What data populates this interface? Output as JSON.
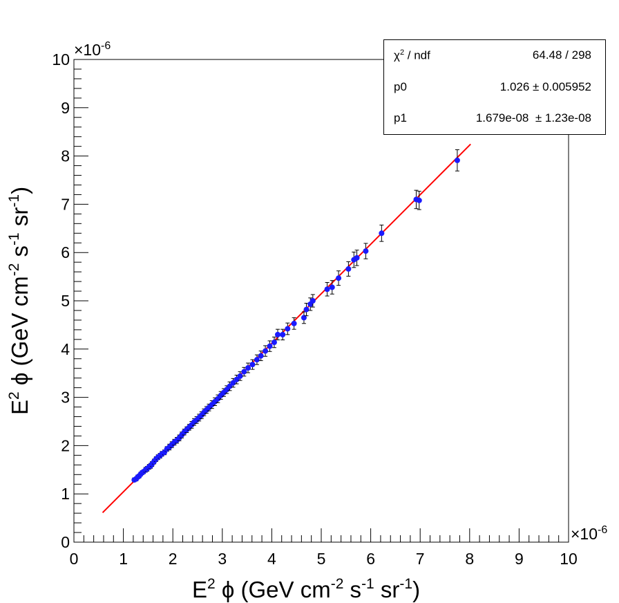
{
  "colors": {
    "marker": "#1a1aff",
    "fit_line": "#ff0000",
    "error_bar": "#000000",
    "frame": "#000000"
  },
  "stats_box": {
    "rows": [
      {
        "key_base": "χ",
        "key_sup": "2",
        "key_rest": " / ndf",
        "value": "64.48 / 298"
      },
      {
        "key": "p0",
        "value": "1.026 ± 0.005952"
      },
      {
        "key": "p1",
        "value": "1.679e-08  ± 1.23e-08"
      }
    ]
  },
  "chart_data": {
    "type": "scatter",
    "title": "",
    "x_axis": {
      "label_parts": [
        "E",
        "2",
        " ϕ (GeV cm",
        "-2",
        " s",
        "-1",
        " sr",
        "-1",
        ")"
      ],
      "multiplier": "×10",
      "multiplier_exp": "-6",
      "range": [
        0,
        10
      ],
      "ticks": [
        "0",
        "1",
        "2",
        "3",
        "4",
        "5",
        "6",
        "7",
        "8",
        "9",
        "10"
      ]
    },
    "y_axis": {
      "label_parts": [
        "E",
        "2",
        " ϕ (GeV cm",
        "-2",
        " s",
        "-1",
        " sr",
        "-1",
        ")"
      ],
      "multiplier": "×10",
      "multiplier_exp": "-6",
      "range": [
        0,
        10
      ],
      "ticks": [
        "0",
        "1",
        "2",
        "3",
        "4",
        "5",
        "6",
        "7",
        "8",
        "9",
        "10"
      ]
    },
    "fit": {
      "function": "p0*x + p1",
      "p0": 1.026,
      "p1": 1.679e-08,
      "x_range": [
        0.58,
        8.02
      ]
    },
    "unit_scale": "1e-6",
    "points": [
      {
        "x": 1.22,
        "y": 1.29,
        "err": 0.04
      },
      {
        "x": 1.26,
        "y": 1.31,
        "err": 0.04
      },
      {
        "x": 1.29,
        "y": 1.35,
        "err": 0.04
      },
      {
        "x": 1.32,
        "y": 1.37,
        "err": 0.04
      },
      {
        "x": 1.35,
        "y": 1.41,
        "err": 0.04
      },
      {
        "x": 1.38,
        "y": 1.44,
        "err": 0.04
      },
      {
        "x": 1.41,
        "y": 1.46,
        "err": 0.04
      },
      {
        "x": 1.45,
        "y": 1.5,
        "err": 0.05
      },
      {
        "x": 1.48,
        "y": 1.52,
        "err": 0.05
      },
      {
        "x": 1.52,
        "y": 1.56,
        "err": 0.05
      },
      {
        "x": 1.55,
        "y": 1.58,
        "err": 0.05
      },
      {
        "x": 1.58,
        "y": 1.62,
        "err": 0.05
      },
      {
        "x": 1.62,
        "y": 1.67,
        "err": 0.05
      },
      {
        "x": 1.66,
        "y": 1.72,
        "err": 0.05
      },
      {
        "x": 1.7,
        "y": 1.76,
        "err": 0.05
      },
      {
        "x": 1.74,
        "y": 1.79,
        "err": 0.05
      },
      {
        "x": 1.78,
        "y": 1.83,
        "err": 0.05
      },
      {
        "x": 1.83,
        "y": 1.86,
        "err": 0.05
      },
      {
        "x": 1.88,
        "y": 1.93,
        "err": 0.05
      },
      {
        "x": 1.93,
        "y": 1.97,
        "err": 0.06
      },
      {
        "x": 1.98,
        "y": 2.02,
        "err": 0.06
      },
      {
        "x": 2.03,
        "y": 2.07,
        "err": 0.06
      },
      {
        "x": 2.08,
        "y": 2.11,
        "err": 0.06
      },
      {
        "x": 2.13,
        "y": 2.16,
        "err": 0.06
      },
      {
        "x": 2.18,
        "y": 2.22,
        "err": 0.06
      },
      {
        "x": 2.23,
        "y": 2.28,
        "err": 0.06
      },
      {
        "x": 2.28,
        "y": 2.33,
        "err": 0.06
      },
      {
        "x": 2.33,
        "y": 2.38,
        "err": 0.06
      },
      {
        "x": 2.38,
        "y": 2.43,
        "err": 0.07
      },
      {
        "x": 2.43,
        "y": 2.49,
        "err": 0.07
      },
      {
        "x": 2.48,
        "y": 2.53,
        "err": 0.07
      },
      {
        "x": 2.53,
        "y": 2.58,
        "err": 0.07
      },
      {
        "x": 2.58,
        "y": 2.63,
        "err": 0.07
      },
      {
        "x": 2.63,
        "y": 2.69,
        "err": 0.07
      },
      {
        "x": 2.68,
        "y": 2.74,
        "err": 0.07
      },
      {
        "x": 2.73,
        "y": 2.79,
        "err": 0.07
      },
      {
        "x": 2.79,
        "y": 2.85,
        "err": 0.08
      },
      {
        "x": 2.85,
        "y": 2.91,
        "err": 0.08
      },
      {
        "x": 2.91,
        "y": 2.97,
        "err": 0.08
      },
      {
        "x": 2.97,
        "y": 3.04,
        "err": 0.08
      },
      {
        "x": 3.03,
        "y": 3.1,
        "err": 0.08
      },
      {
        "x": 3.09,
        "y": 3.16,
        "err": 0.08
      },
      {
        "x": 3.15,
        "y": 3.23,
        "err": 0.09
      },
      {
        "x": 3.22,
        "y": 3.3,
        "err": 0.09
      },
      {
        "x": 3.29,
        "y": 3.37,
        "err": 0.09
      },
      {
        "x": 3.36,
        "y": 3.44,
        "err": 0.09
      },
      {
        "x": 3.44,
        "y": 3.53,
        "err": 0.09
      },
      {
        "x": 3.52,
        "y": 3.61,
        "err": 0.1
      },
      {
        "x": 3.61,
        "y": 3.68,
        "err": 0.1
      },
      {
        "x": 3.7,
        "y": 3.78,
        "err": 0.1
      },
      {
        "x": 3.78,
        "y": 3.86,
        "err": 0.1
      },
      {
        "x": 3.87,
        "y": 3.96,
        "err": 0.11
      },
      {
        "x": 3.96,
        "y": 4.06,
        "err": 0.11
      },
      {
        "x": 4.05,
        "y": 4.14,
        "err": 0.11
      },
      {
        "x": 4.12,
        "y": 4.3,
        "err": 0.11
      },
      {
        "x": 4.22,
        "y": 4.3,
        "err": 0.11
      },
      {
        "x": 4.32,
        "y": 4.42,
        "err": 0.12
      },
      {
        "x": 4.45,
        "y": 4.53,
        "err": 0.12
      },
      {
        "x": 4.65,
        "y": 4.65,
        "err": 0.12
      },
      {
        "x": 4.7,
        "y": 4.82,
        "err": 0.13
      },
      {
        "x": 4.78,
        "y": 4.93,
        "err": 0.13
      },
      {
        "x": 4.83,
        "y": 5.0,
        "err": 0.13
      },
      {
        "x": 5.12,
        "y": 5.24,
        "err": 0.14
      },
      {
        "x": 5.22,
        "y": 5.28,
        "err": 0.14
      },
      {
        "x": 5.35,
        "y": 5.47,
        "err": 0.15
      },
      {
        "x": 5.55,
        "y": 5.66,
        "err": 0.15
      },
      {
        "x": 5.66,
        "y": 5.85,
        "err": 0.16
      },
      {
        "x": 5.72,
        "y": 5.89,
        "err": 0.16
      },
      {
        "x": 5.9,
        "y": 6.03,
        "err": 0.16
      },
      {
        "x": 6.22,
        "y": 6.4,
        "err": 0.17
      },
      {
        "x": 6.92,
        "y": 7.1,
        "err": 0.19
      },
      {
        "x": 6.98,
        "y": 7.08,
        "err": 0.19
      },
      {
        "x": 7.75,
        "y": 7.91,
        "err": 0.22
      }
    ]
  }
}
